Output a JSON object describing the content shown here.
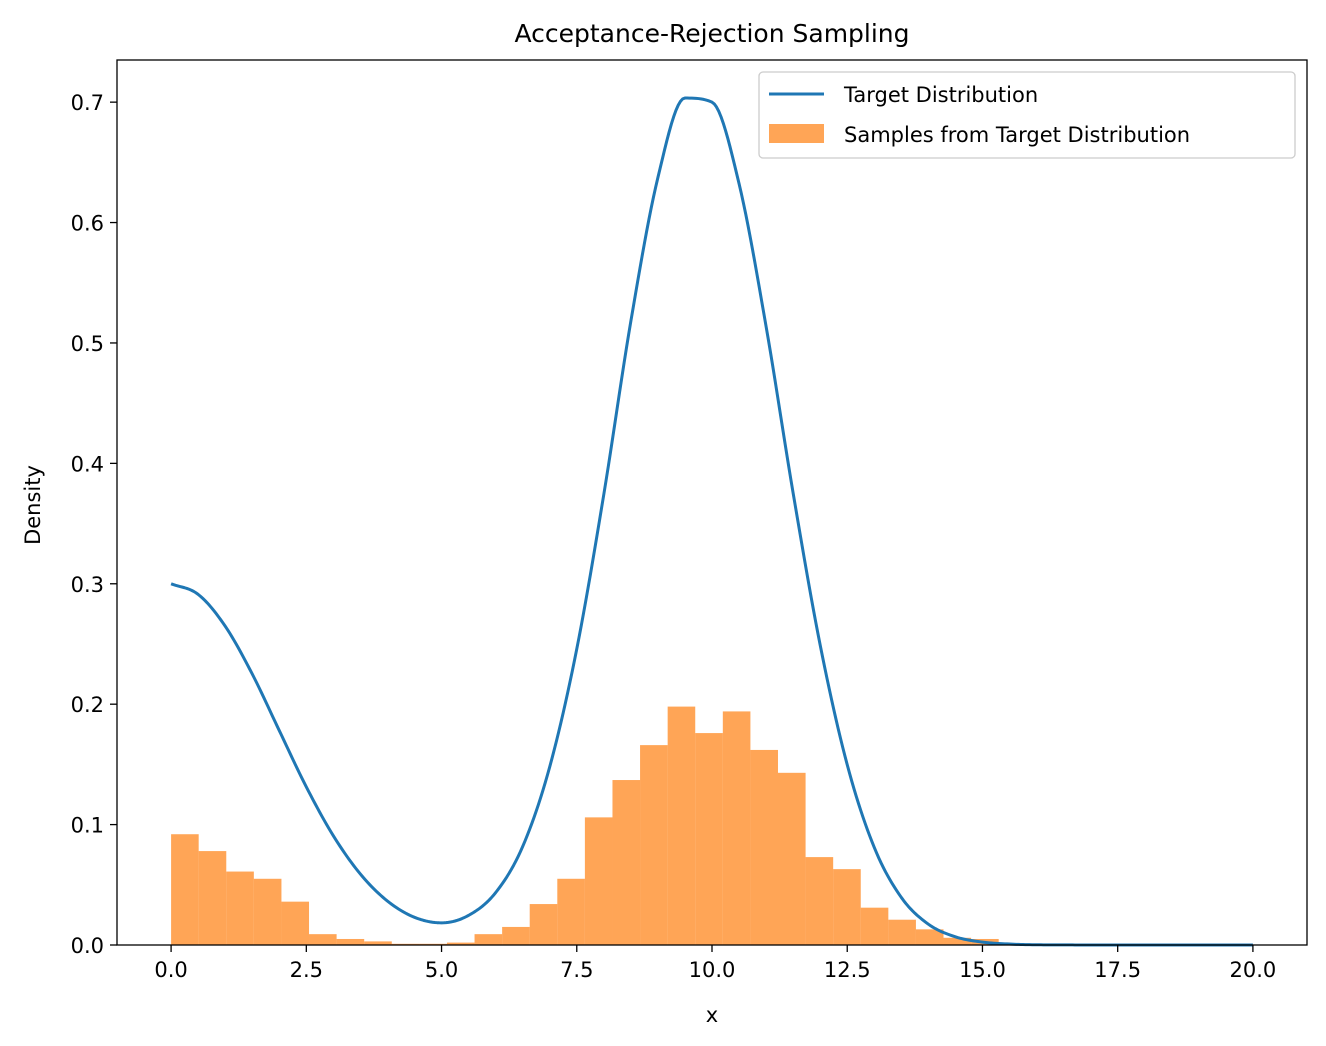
{
  "chart_data": {
    "type": "line+histogram",
    "title": "Acceptance-Rejection Sampling",
    "xlabel": "x",
    "ylabel": "Density",
    "xlim": [
      -1.0,
      21.0
    ],
    "ylim": [
      0.0,
      0.735
    ],
    "xticks": [
      0.0,
      2.5,
      5.0,
      7.5,
      10.0,
      12.5,
      15.0,
      17.5,
      20.0
    ],
    "xtick_labels": [
      "0.0",
      "2.5",
      "5.0",
      "7.5",
      "10.0",
      "12.5",
      "15.0",
      "17.5",
      "20.0"
    ],
    "yticks": [
      0.0,
      0.1,
      0.2,
      0.3,
      0.4,
      0.5,
      0.6,
      0.7
    ],
    "ytick_labels": [
      "0.0",
      "0.1",
      "0.2",
      "0.3",
      "0.4",
      "0.5",
      "0.6",
      "0.7"
    ],
    "grid": false,
    "legend": {
      "position": "upper right",
      "entries": [
        "Target Distribution",
        "Samples from Target Distribution"
      ]
    },
    "series": [
      {
        "name": "Target Distribution",
        "kind": "line",
        "color": "#1f77b4",
        "x": [
          0.0,
          0.5,
          1.0,
          1.5,
          2.0,
          2.5,
          3.0,
          3.5,
          4.0,
          4.5,
          5.0,
          5.5,
          6.0,
          6.5,
          7.0,
          7.5,
          8.0,
          8.5,
          9.0,
          9.5,
          10.0,
          10.5,
          11.0,
          11.5,
          12.0,
          12.5,
          13.0,
          13.5,
          14.0,
          14.5,
          15.0,
          15.5,
          16.0,
          16.5,
          17.0,
          18.0,
          19.0,
          20.0
        ],
        "y": [
          0.3,
          0.2912,
          0.2648,
          0.2251,
          0.1781,
          0.1313,
          0.0907,
          0.0589,
          0.0365,
          0.023,
          0.0184,
          0.0246,
          0.0435,
          0.0818,
          0.148,
          0.2459,
          0.3743,
          0.5181,
          0.6374,
          0.7034,
          0.7,
          0.6323,
          0.5137,
          0.3753,
          0.2491,
          0.1497,
          0.081,
          0.0395,
          0.0173,
          0.0068,
          0.0024,
          0.0008,
          0.0002,
          0.0001,
          0.0,
          0.0,
          0.0,
          0.0
        ]
      },
      {
        "name": "Samples from Target Distribution",
        "kind": "histogram",
        "color": "#ff7f0e",
        "alpha": 0.7,
        "bin_edges": [
          0.0,
          0.51,
          1.02,
          1.53,
          2.04,
          2.55,
          3.06,
          3.57,
          4.08,
          4.59,
          5.1,
          5.61,
          6.12,
          6.63,
          7.14,
          7.65,
          8.16,
          8.67,
          9.18,
          9.69,
          10.2,
          10.71,
          11.22,
          11.73,
          12.24,
          12.75,
          13.26,
          13.77,
          14.28,
          14.79,
          15.3
        ],
        "values": [
          0.092,
          0.078,
          0.061,
          0.055,
          0.036,
          0.009,
          0.005,
          0.003,
          0.001,
          0.001,
          0.002,
          0.009,
          0.015,
          0.034,
          0.055,
          0.106,
          0.137,
          0.166,
          0.198,
          0.176,
          0.194,
          0.162,
          0.143,
          0.073,
          0.063,
          0.031,
          0.021,
          0.013,
          0.006,
          0.005
        ]
      }
    ]
  }
}
